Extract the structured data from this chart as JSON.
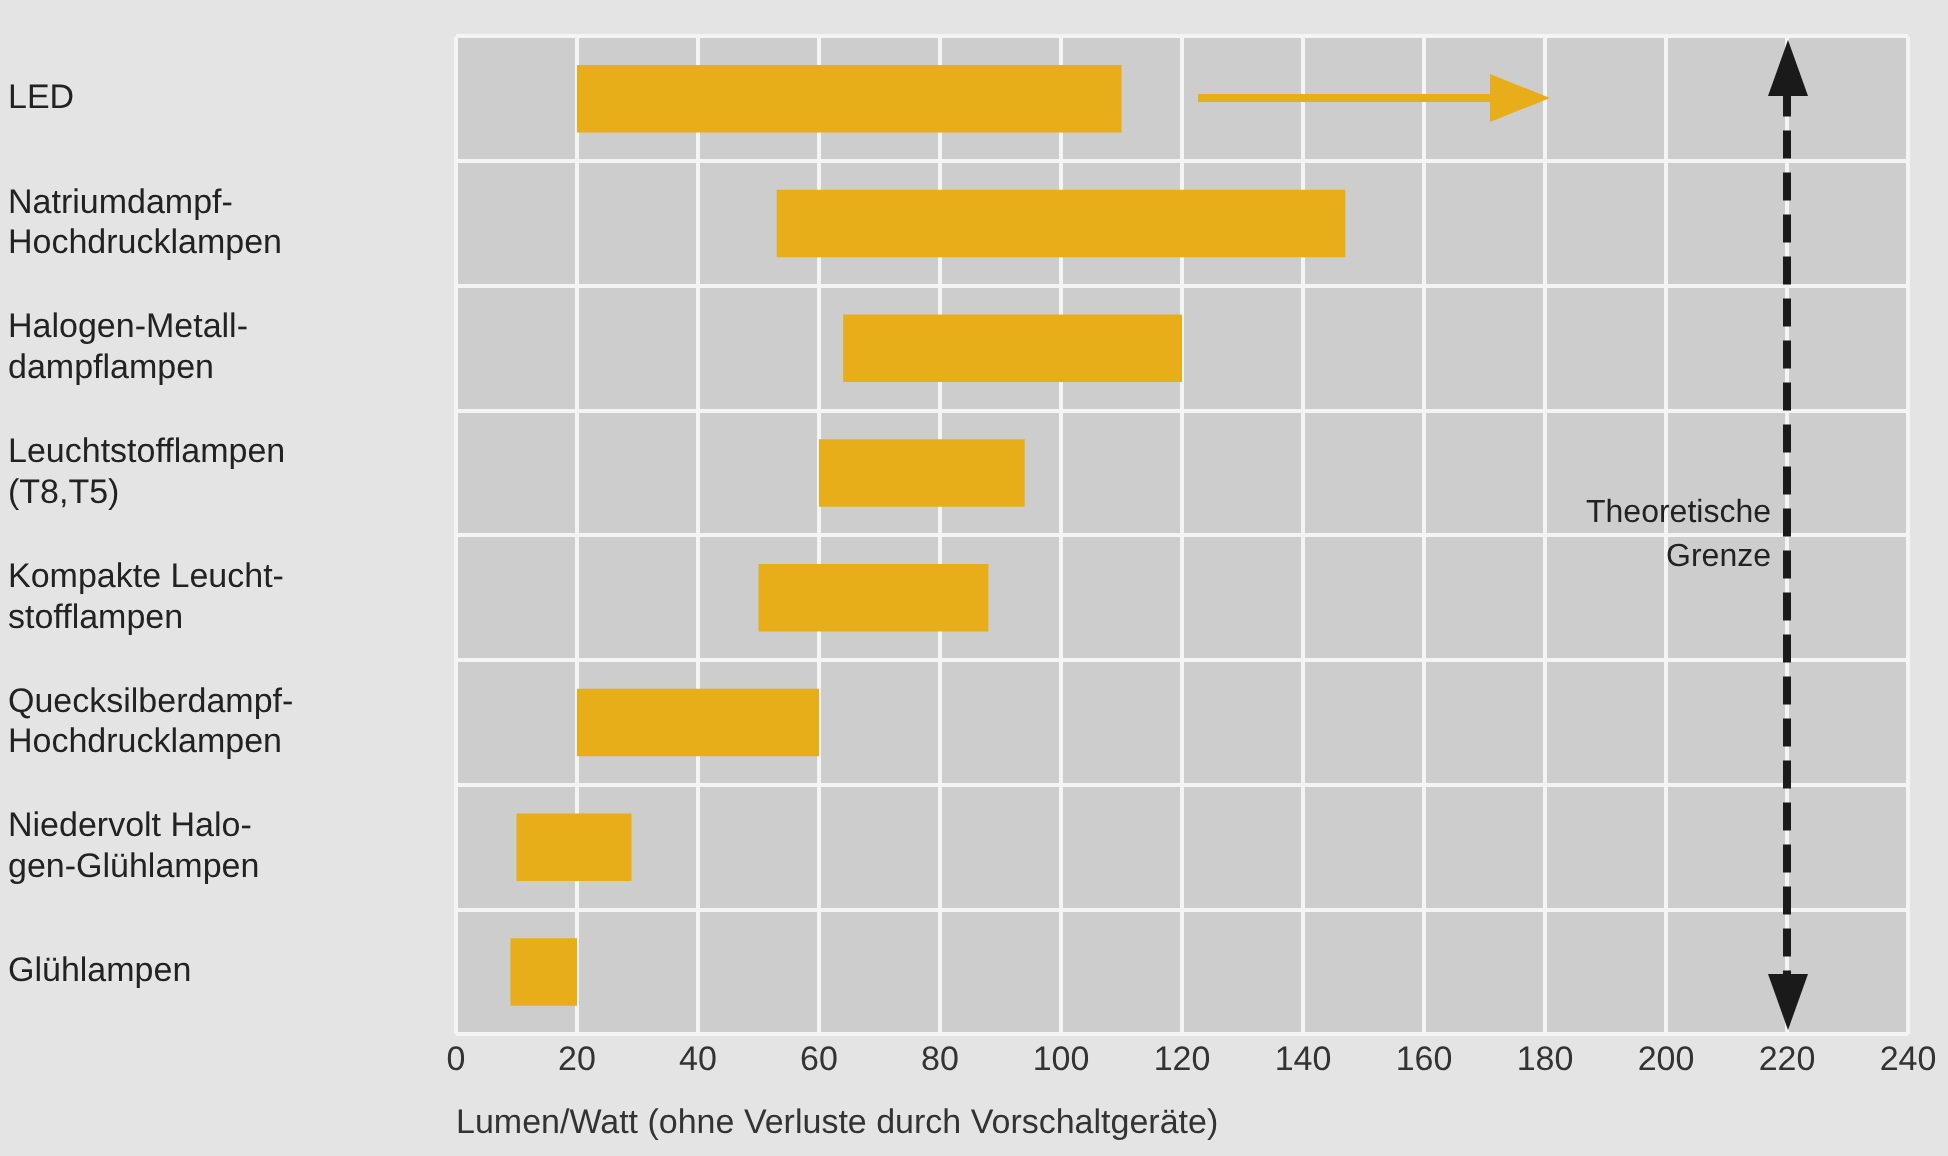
{
  "chart_data": {
    "type": "bar",
    "orientation": "horizontal",
    "categories": [
      "LED",
      "Natriumdampf-\nHochdrucklampen",
      "Halogen-Metall-\ndampflampen",
      "Leuchtstofflampen\n(T8,T5)",
      "Kompakte Leucht-\nstofflampen",
      "Quecksilberdampf-\nHochdrucklampen",
      "Niedervolt Halo-\ngen-Glühlampen",
      "Glühlampen"
    ],
    "base": [
      20,
      53,
      64,
      60,
      50,
      20,
      10,
      9
    ],
    "values": [
      90,
      94,
      56,
      34,
      38,
      40,
      19,
      11
    ],
    "color": "#e8ae1a",
    "xlabel": "Lumen/Watt (ohne Verluste durch Vorschaltgeräte)",
    "xlim": [
      0,
      240
    ],
    "xticks": [
      0,
      20,
      40,
      60,
      80,
      100,
      120,
      140,
      160,
      180,
      200,
      220,
      240
    ],
    "grid": true,
    "ref_lines": [
      {
        "axis": "x",
        "value": 220,
        "label": "Theoretische Grenze",
        "color": "#1a1a1a",
        "line_style": "dashed"
      }
    ]
  }
}
